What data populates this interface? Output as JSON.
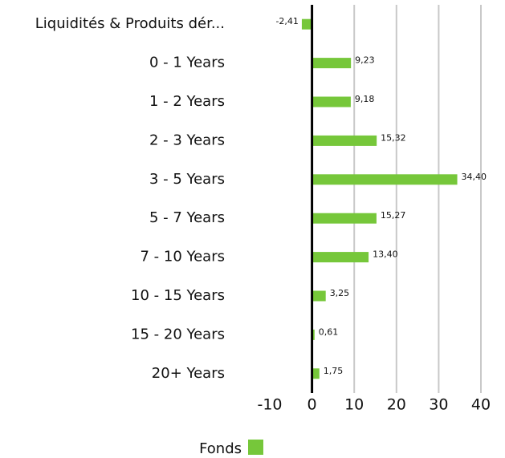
{
  "chart_data": {
    "type": "hbar",
    "categories": [
      "Liquidités & Produits dér...",
      "0 - 1 Years",
      "1 - 2 Years",
      "2 - 3 Years",
      "3 - 5 Years",
      "5 - 7 Years",
      "7 - 10 Years",
      "10 - 15 Years",
      "15 - 20 Years",
      "20+ Years"
    ],
    "series": [
      {
        "name": "Fonds",
        "color": "#76c73a",
        "values": [
          -2.41,
          9.23,
          9.18,
          15.32,
          34.4,
          15.27,
          13.4,
          3.25,
          0.61,
          1.75
        ],
        "value_labels": [
          "-2,41",
          "9,23",
          "9,18",
          "15,32",
          "34,40",
          "15,27",
          "13,40",
          "3,25",
          "0,61",
          "1,75"
        ]
      }
    ],
    "xlim": [
      -10,
      40
    ],
    "xticks": [
      -10,
      0,
      10,
      20,
      30,
      40
    ],
    "grid": true,
    "legend": "bottom"
  }
}
